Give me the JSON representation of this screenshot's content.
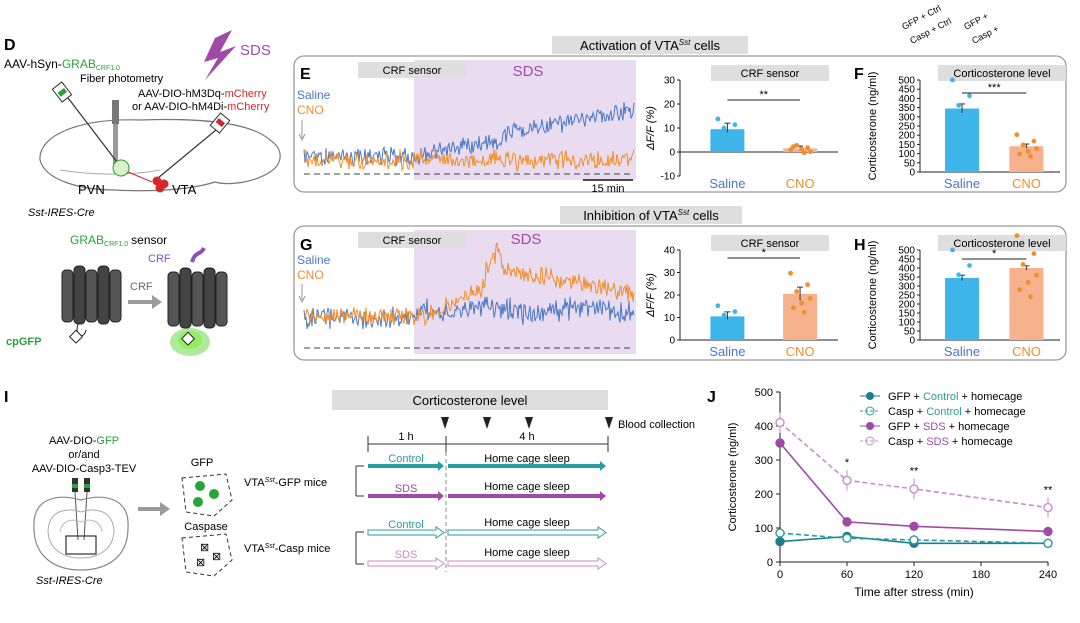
{
  "panel_letters": {
    "D": "D",
    "E": "E",
    "F": "F",
    "G": "G",
    "H": "H",
    "I": "I",
    "J": "J"
  },
  "colors": {
    "blue": "#4a78c8",
    "orange": "#f28e2b",
    "saline_bar": "#3fb6ea",
    "cno_bar": "#f6b28c",
    "purple": "#a04aa8",
    "teal": "#2a9d9f",
    "sds_shade": "#eadcf0",
    "title_gray": "#dedede"
  },
  "panel_d": {
    "virus_top": "AAV-hSyn-",
    "grab": "GRAB",
    "grab_sub": "CRF1.0",
    "fiber": "Fiber photometry",
    "virus_hm3dq_pre": "AAV-DIO-hM3Dq-",
    "virus_hm4di_pre": "or AAV-DIO-hM4Di-",
    "mcherry": "mCherry",
    "sds": "SDS",
    "pvn": "PVN",
    "vta": "VTA",
    "mouse_line": "Sst-IRES-Cre",
    "sensor_grab": "GRAB",
    "sensor_sub": "CRF1.0",
    "sensor_word": "sensor",
    "crf_label": "CRF",
    "crf_arrow_label": "CRF",
    "cpgfp": "cpGFP"
  },
  "top_row_title": {
    "pre": "Activation of VTA",
    "sup": "Sst",
    "post": " cells"
  },
  "mid_row_title": {
    "pre": "Inhibition of VTA",
    "sup": "Sst",
    "post": " cells"
  },
  "panel_e": {
    "crf_sensor": "CRF sensor",
    "sds": "SDS",
    "saline": "Saline",
    "cno": "CNO",
    "scale": "15 min",
    "bar_title": "CRF sensor",
    "ylabel": "ΔF/F (%)",
    "sig": "**"
  },
  "panel_g": {
    "crf_sensor": "CRF sensor",
    "sds": "SDS",
    "saline": "Saline",
    "cno": "CNO",
    "bar_title": "CRF sensor",
    "ylabel": "ΔF/F (%)",
    "sig": "*"
  },
  "panel_f": {
    "bar_title": "Corticosterone level",
    "ylabel": "Corticosterone (ng/ml)",
    "sig": "***",
    "legend_gfp": "GFP + Ctrl",
    "legend_casp": "Casp + Ctrl",
    "legend_gfp2": "GFP +",
    "legend_casp2": "Casp +"
  },
  "panel_h": {
    "bar_title": "Corticosterone level",
    "ylabel": "Corticosterone (ng/ml)",
    "sig": "*"
  },
  "panel_i": {
    "virus1_pre": "AAV-DIO-",
    "virus1_gfp": "GFP",
    "virus_or": "or/and",
    "virus2": "AAV-DIO-Casp3-TEV",
    "mouse_line": "Sst-IRES-Cre",
    "gfp": "GFP",
    "caspase": "Caspase",
    "title": "Corticosterone level",
    "t1": "1 h",
    "t2": "4 h",
    "blood": "Blood collection",
    "gfp_mice_pre": "VTA",
    "gfp_mice_sup": "Sst",
    "gfp_mice_post": "-GFP mice",
    "casp_mice_pre": "VTA",
    "casp_mice_sup": "Sst",
    "casp_mice_post": "-Casp mice",
    "arrows": [
      {
        "label": "Control",
        "sleep": "Home cage sleep"
      },
      {
        "label": "SDS",
        "sleep": "Home cage sleep"
      },
      {
        "label": "Control",
        "sleep": "Home cage sleep"
      },
      {
        "label": "SDS",
        "sleep": "Home cage sleep"
      }
    ]
  },
  "chart_data": [
    {
      "id": "E_bar",
      "type": "bar",
      "title": "CRF sensor",
      "ylabel": "ΔF/F (%)",
      "categories": [
        "Saline",
        "CNO"
      ],
      "values": [
        9.5,
        1.5
      ],
      "errors": [
        2.5,
        1.0
      ],
      "ylim": [
        -10,
        30
      ],
      "yticks": [
        -10,
        0,
        10,
        20,
        30
      ],
      "significance": "**"
    },
    {
      "id": "F_bar",
      "type": "bar",
      "title": "Corticosterone level",
      "ylabel": "Corticosterone (ng/ml)",
      "categories": [
        "Saline",
        "CNO"
      ],
      "values": [
        345,
        140
      ],
      "errors": [
        25,
        12
      ],
      "ylim": [
        0,
        500
      ],
      "yticks": [
        0,
        50,
        100,
        150,
        200,
        250,
        300,
        350,
        400,
        450,
        500
      ],
      "significance": "***"
    },
    {
      "id": "G_bar",
      "type": "bar",
      "title": "CRF sensor",
      "ylabel": "ΔF/F (%)",
      "categories": [
        "Saline",
        "CNO"
      ],
      "values": [
        10.5,
        20.5
      ],
      "errors": [
        2.0,
        3.0
      ],
      "ylim": [
        0,
        40
      ],
      "yticks": [
        0,
        10,
        20,
        30,
        40
      ],
      "significance": "*"
    },
    {
      "id": "H_bar",
      "type": "bar",
      "title": "Corticosterone level",
      "ylabel": "Corticosterone (ng/ml)",
      "categories": [
        "Saline",
        "CNO"
      ],
      "values": [
        345,
        400
      ],
      "errors": [
        15,
        12
      ],
      "ylim": [
        0,
        500
      ],
      "yticks": [
        0,
        50,
        100,
        150,
        200,
        250,
        300,
        350,
        400,
        450,
        500
      ],
      "significance": "*"
    },
    {
      "id": "J_line",
      "type": "line",
      "xlabel": "Time after stress (min)",
      "ylabel": "Corticosterone (ng/ml)",
      "x": [
        0,
        60,
        120,
        240
      ],
      "xticks": [
        0,
        60,
        120,
        180,
        240
      ],
      "xlim": [
        0,
        240
      ],
      "ylim": [
        0,
        500
      ],
      "yticks": [
        0,
        100,
        200,
        300,
        400,
        500
      ],
      "series": [
        {
          "name": "GFP + Control + homecage",
          "values": [
            60,
            75,
            55,
            55
          ]
        },
        {
          "name": "Casp + Control + homecage",
          "values": [
            85,
            70,
            65,
            55
          ]
        },
        {
          "name": "GFP + SDS + homecage",
          "values": [
            350,
            118,
            105,
            90
          ]
        },
        {
          "name": "Casp + SDS + homecage",
          "values": [
            410,
            240,
            215,
            160
          ]
        }
      ],
      "significance": [
        "",
        "*",
        "**",
        "**"
      ]
    }
  ],
  "legend_j": [
    {
      "pre": "GFP + ",
      "mid": "Control",
      "post": " + homecage"
    },
    {
      "pre": "Casp + ",
      "mid": "Control",
      "post": " + homecage"
    },
    {
      "pre": "GFP + ",
      "mid": "SDS",
      "post": " + homecage"
    },
    {
      "pre": "Casp + ",
      "mid": "SDS",
      "post": " + homecage"
    }
  ]
}
